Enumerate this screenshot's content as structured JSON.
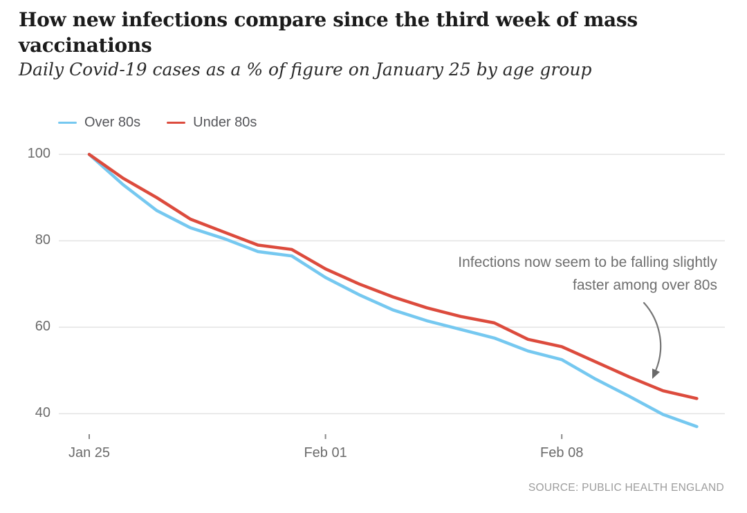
{
  "header": {
    "title_lines": [
      "How new infections compare since the third week of mass",
      "vaccinations"
    ],
    "subtitle": "Daily Covid-19 cases as a % of figure on January 25 by age group"
  },
  "legend": {
    "items": [
      {
        "label": "Over 80s",
        "color": "#75C8F0"
      },
      {
        "label": "Under 80s",
        "color": "#DC4B3D"
      }
    ]
  },
  "annotation": {
    "line1": "Infections now seem to be falling slightly",
    "line2": "faster among over 80s"
  },
  "source": "SOURCE: PUBLIC HEALTH ENGLAND",
  "chart_data": {
    "type": "line",
    "title": "How new infections compare since the third week of mass vaccinations",
    "subtitle": "Daily Covid-19 cases as a % of figure on January 25 by age group",
    "x": [
      "Jan 25",
      "Jan 26",
      "Jan 27",
      "Jan 28",
      "Jan 29",
      "Jan 30",
      "Jan 31",
      "Feb 01",
      "Feb 02",
      "Feb 03",
      "Feb 04",
      "Feb 05",
      "Feb 06",
      "Feb 07",
      "Feb 08",
      "Feb 09",
      "Feb 10",
      "Feb 11",
      "Feb 12"
    ],
    "series": [
      {
        "name": "Over 80s",
        "color": "#75C8F0",
        "values": [
          100,
          93,
          87,
          83,
          80.5,
          77.5,
          76.5,
          71.5,
          67.5,
          64,
          61.5,
          59.5,
          57.5,
          54.5,
          52.5,
          48,
          44,
          39.8,
          37
        ]
      },
      {
        "name": "Under 80s",
        "color": "#DC4B3D",
        "values": [
          100,
          94.5,
          90,
          85,
          82,
          79,
          78,
          73.5,
          70,
          67,
          64.5,
          62.5,
          61,
          57.2,
          55.5,
          52,
          48.5,
          45.3,
          43.5
        ]
      }
    ],
    "yticks": [
      100,
      80,
      60,
      40
    ],
    "xticks": [
      {
        "index": 0,
        "label": "Jan 25"
      },
      {
        "index": 7,
        "label": "Feb 01"
      },
      {
        "index": 14,
        "label": "Feb 08"
      }
    ],
    "ylim": [
      35,
      102
    ],
    "grid": true,
    "legend_position": "top-left",
    "annotation": "Infections now seem to be falling slightly faster among over 80s",
    "source": "SOURCE: PUBLIC HEALTH ENGLAND"
  },
  "colors": {
    "grid": "#e4e4e4",
    "tick": "#8a8a8a",
    "axis_text": "#6a6a6a",
    "annotation_text": "#6e6e6e",
    "arrow": "#757575",
    "title": "#1b1b1b",
    "source": "#9c9c9c"
  }
}
